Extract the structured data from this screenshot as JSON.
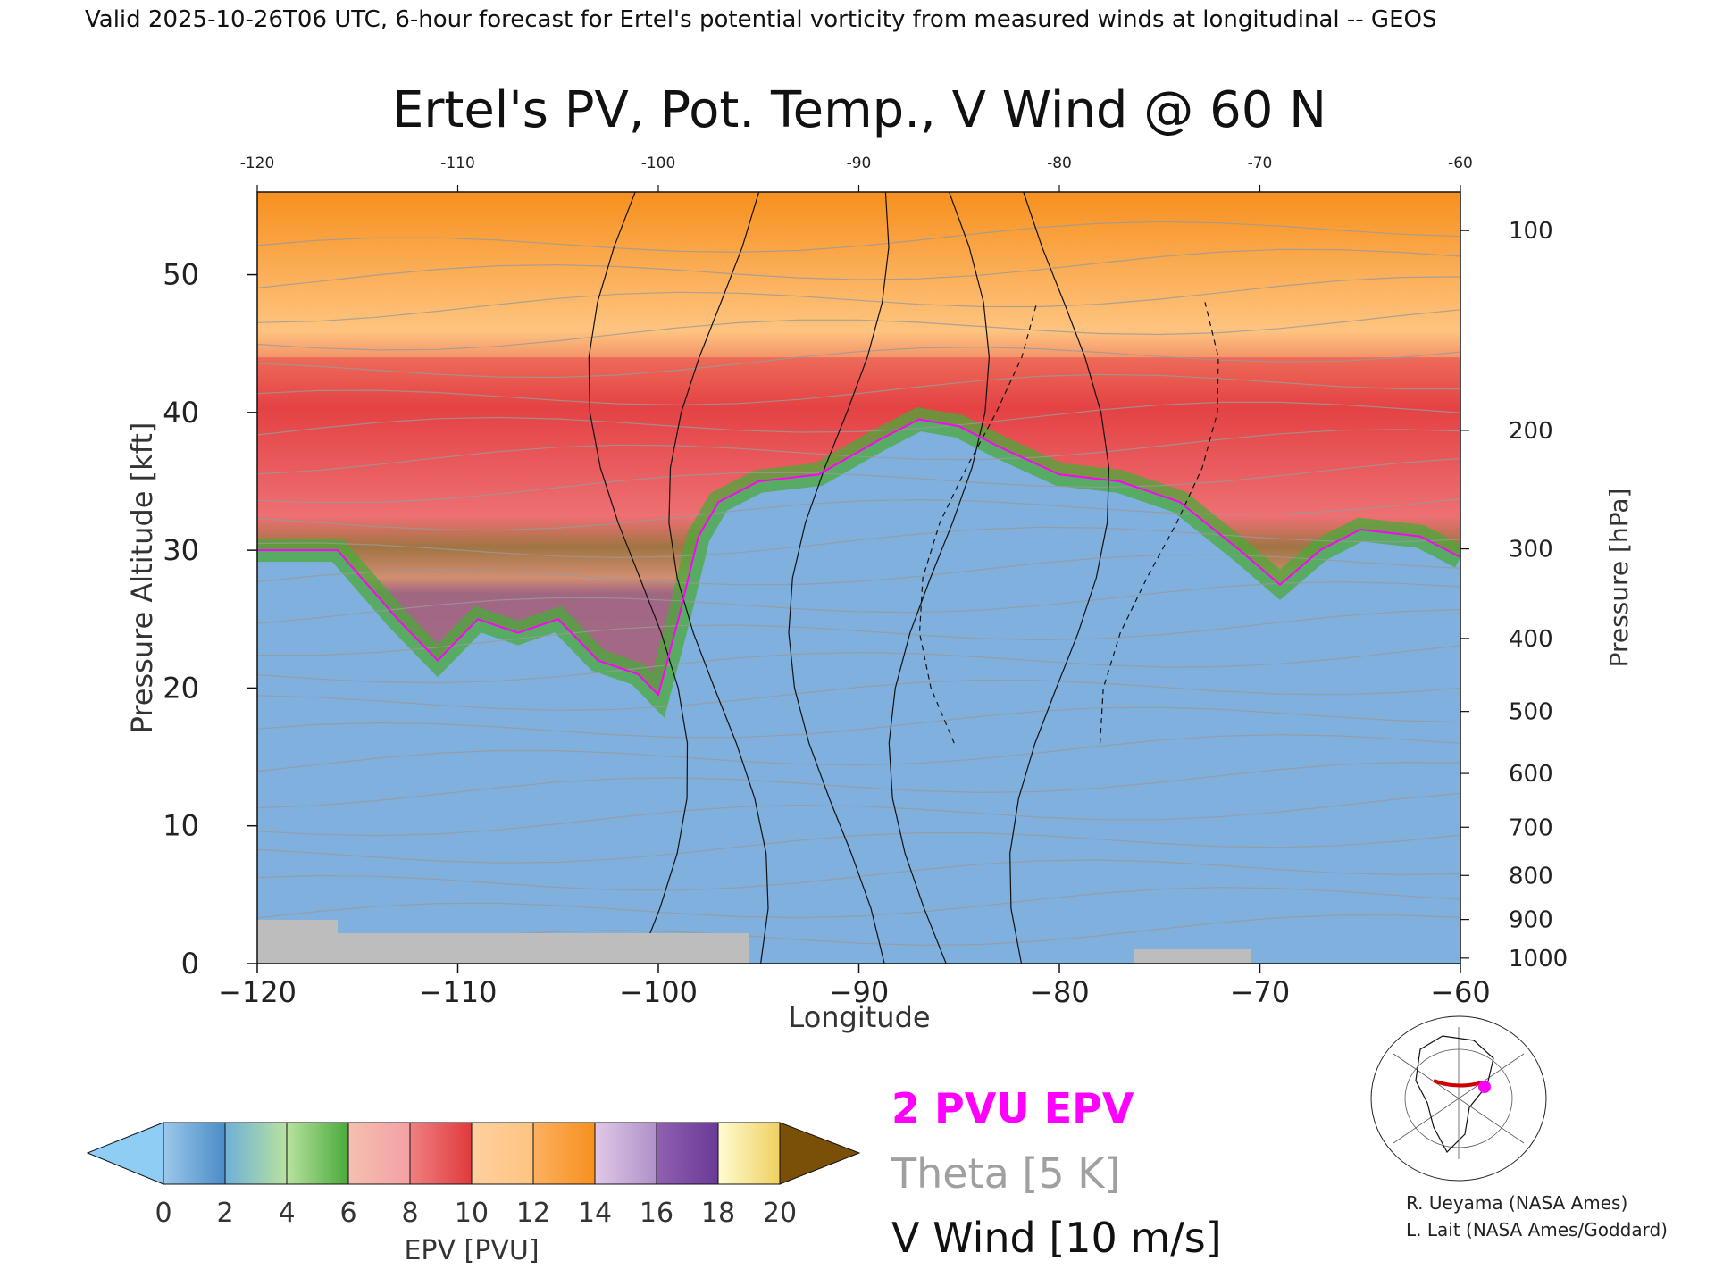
{
  "header": {
    "valid_line": "Valid 2025-10-26T06 UTC, 6-hour forecast for Ertel's potential vorticity from measured winds at longitudinal -- GEOS"
  },
  "chart_data": {
    "type": "heatmap",
    "title": "Ertel's PV, Pot. Temp., V Wind @ 60 N",
    "xlabel": "Longitude",
    "ylabel": "Pressure Altitude [kft]",
    "y2label": "Pressure [hPa]",
    "xlim": [
      -120,
      -60
    ],
    "ylim": [
      0,
      56
    ],
    "x_ticks": [
      -120,
      -110,
      -100,
      -90,
      -80,
      -70,
      -60
    ],
    "x_tick_labels": [
      "−120",
      "−110",
      "−100",
      "−90",
      "−80",
      "−70",
      "−60"
    ],
    "top_tick_labels": [
      "-120",
      "-110",
      "-100",
      "-90",
      "-80",
      "-70",
      "-60"
    ],
    "y_ticks": [
      0,
      10,
      20,
      30,
      40,
      50
    ],
    "y_tick_labels": [
      "0",
      "10",
      "20",
      "30",
      "40",
      "50"
    ],
    "pressure_ticks": [
      {
        "label": "100",
        "kft": 53.2
      },
      {
        "label": "200",
        "kft": 38.7
      },
      {
        "label": "300",
        "kft": 30.1
      },
      {
        "label": "400",
        "kft": 23.6
      },
      {
        "label": "500",
        "kft": 18.3
      },
      {
        "label": "600",
        "kft": 13.8
      },
      {
        "label": "700",
        "kft": 9.9
      },
      {
        "label": "800",
        "kft": 6.4
      },
      {
        "label": "900",
        "kft": 3.2
      },
      {
        "label": "1000",
        "kft": 0.4
      }
    ],
    "tropopause_2pvu": {
      "lon": [
        -120,
        -116,
        -113,
        -111,
        -109,
        -107,
        -105,
        -103,
        -101,
        -100,
        -99,
        -98,
        -97,
        -95,
        -92,
        -89,
        -87,
        -85,
        -83,
        -80,
        -77,
        -74,
        -71,
        -69,
        -67,
        -65,
        -62,
        -60
      ],
      "kft": [
        30,
        30,
        25,
        22,
        25,
        24,
        25,
        22,
        21,
        19.5,
        25,
        31,
        33.5,
        35,
        35.5,
        38,
        39.5,
        39,
        37.5,
        35.5,
        35,
        33.5,
        30,
        27.5,
        30,
        31.5,
        31,
        29.5
      ]
    },
    "colorbar": {
      "label": "EPV [PVU]",
      "tick_labels": [
        "0",
        "2",
        "4",
        "6",
        "8",
        "10",
        "12",
        "14",
        "16",
        "18",
        "20"
      ],
      "colors": [
        "#9cc8ea",
        "#4b8cc8",
        "#b8e2a0",
        "#4aaa3a",
        "#f4a0a4",
        "#e03a3c",
        "#fec480",
        "#f7901e",
        "#c8a8d4",
        "#7a4aa0",
        "#fef8a0"
      ],
      "under_color": "#8fcdf5",
      "over_color": "#7a5008"
    },
    "legend": [
      {
        "label": "2 PVU EPV",
        "color": "#ff00ff"
      },
      {
        "label": "Theta [5 K]",
        "color": "#a0a0a0"
      },
      {
        "label": "V Wind [10 m/s]",
        "color": "#000000"
      }
    ],
    "credits": [
      "R. Ueyama (NASA Ames)",
      "L. Lait (NASA Ames/Goddard)"
    ],
    "map_inset": {
      "marker_color": "#ff00ff",
      "line_color": "#cc0000"
    }
  }
}
